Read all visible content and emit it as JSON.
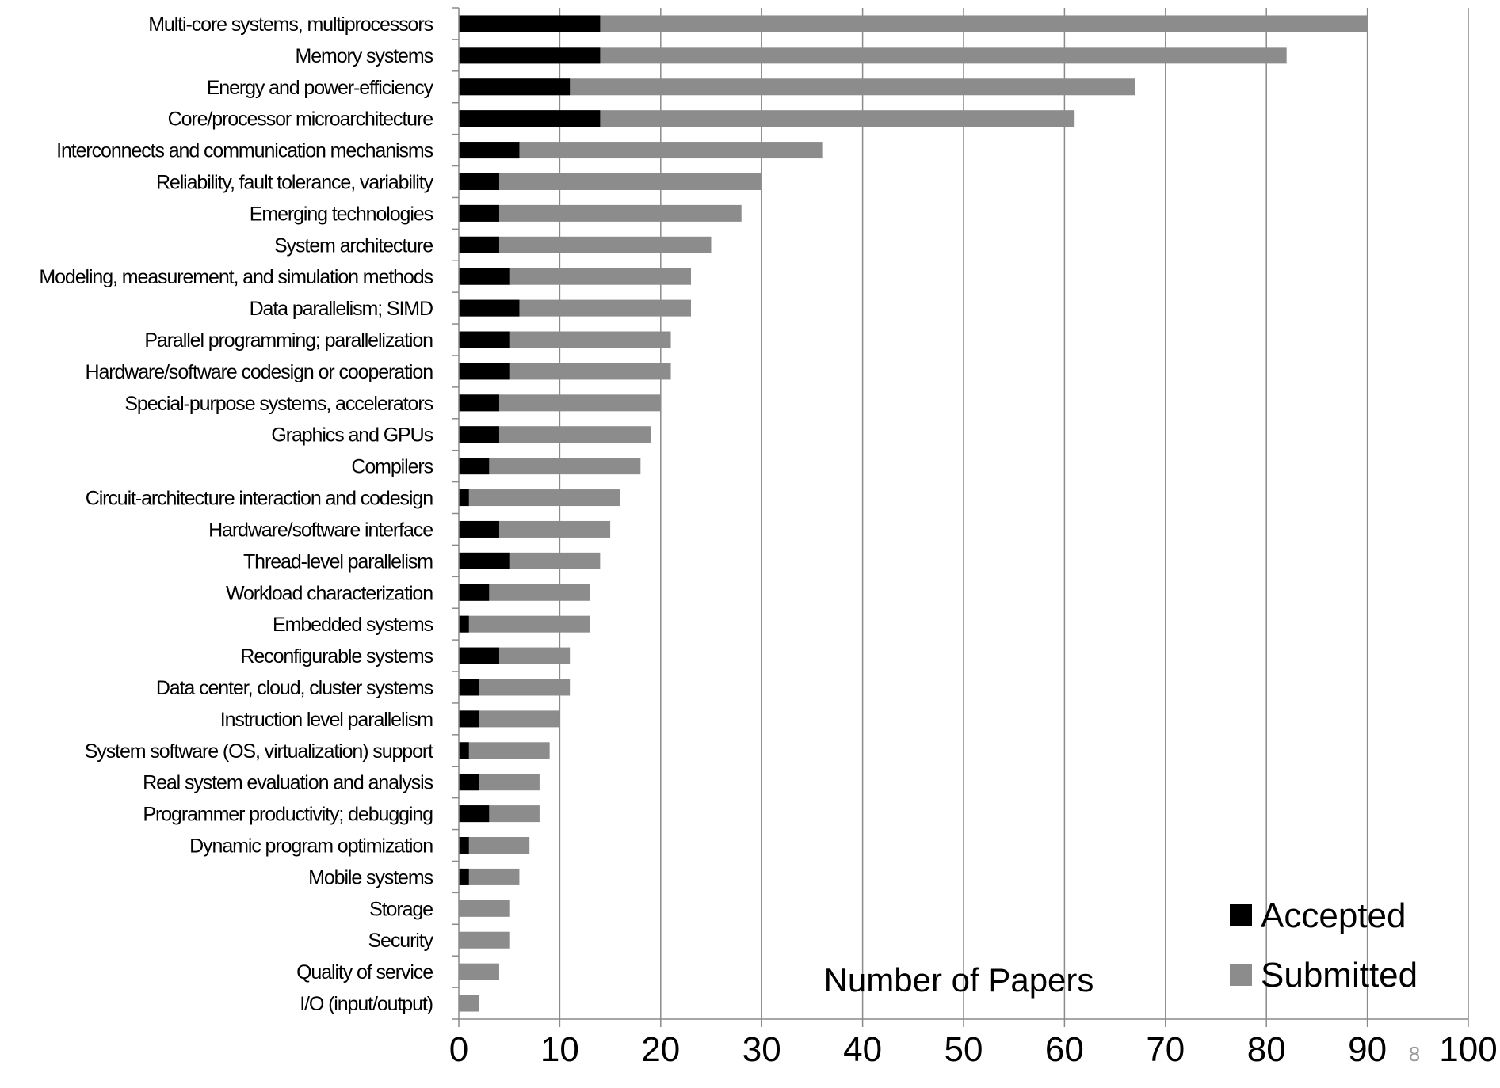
{
  "chart_data": {
    "type": "bar",
    "orientation": "horizontal",
    "stacked": false,
    "categories": [
      "Multi-core systems, multiprocessors",
      "Memory systems",
      "Energy and power-efficiency",
      "Core/processor microarchitecture",
      "Interconnects and communication mechanisms",
      "Reliability, fault tolerance, variability",
      "Emerging technologies",
      "System architecture",
      "Modeling, measurement, and simulation methods",
      "Data parallelism; SIMD",
      "Parallel programming; parallelization",
      "Hardware/software codesign or cooperation",
      "Special-purpose systems, accelerators",
      "Graphics and GPUs",
      "Compilers",
      "Circuit-architecture interaction and codesign",
      "Hardware/software interface",
      "Thread-level parallelism",
      "Workload characterization",
      "Embedded systems",
      "Reconfigurable systems",
      "Data center, cloud, cluster systems",
      "Instruction level parallelism",
      "System software (OS, virtualization) support",
      "Real system evaluation and analysis",
      "Programmer productivity; debugging",
      "Dynamic program optimization",
      "Mobile systems",
      "Storage",
      "Security",
      "Quality of service",
      "I/O (input/output)"
    ],
    "series": [
      {
        "name": "Submitted",
        "color": "#8c8c8c",
        "values": [
          90,
          82,
          67,
          61,
          36,
          30,
          28,
          25,
          23,
          23,
          21,
          21,
          20,
          19,
          18,
          16,
          15,
          14,
          13,
          13,
          11,
          11,
          10,
          9,
          8,
          8,
          7,
          6,
          5,
          5,
          4,
          2
        ]
      },
      {
        "name": "Accepted",
        "color": "#000000",
        "values": [
          14,
          14,
          11,
          14,
          6,
          4,
          4,
          4,
          5,
          6,
          5,
          5,
          4,
          4,
          3,
          1,
          4,
          5,
          3,
          1,
          4,
          2,
          2,
          1,
          2,
          3,
          1,
          1,
          0,
          0,
          0,
          0
        ]
      }
    ],
    "xlim": [
      0,
      100
    ],
    "xticks": [
      0,
      10,
      20,
      30,
      40,
      50,
      60,
      70,
      80,
      90,
      100
    ],
    "xlabel": "Number of Papers",
    "grid": "vertical",
    "legend": {
      "placement": "bottom-right",
      "entries": [
        "Accepted",
        "Submitted"
      ]
    }
  },
  "page_number": "8"
}
